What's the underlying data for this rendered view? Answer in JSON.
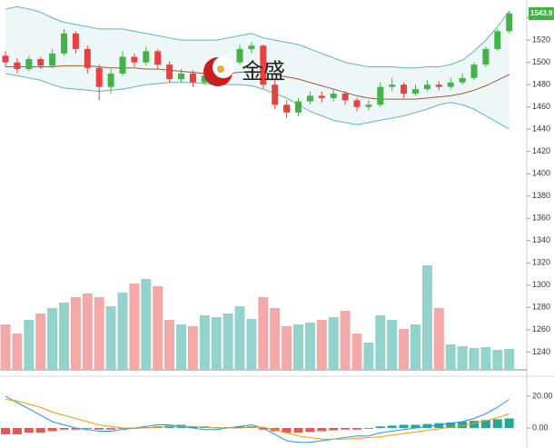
{
  "watermark": "金盛",
  "chart_data": [
    {
      "type": "candlestick",
      "ohlc": [
        [
          1506,
          1510,
          1496,
          1500
        ],
        [
          1500,
          1504,
          1490,
          1494
        ],
        [
          1494,
          1506,
          1492,
          1503
        ],
        [
          1503,
          1505,
          1494,
          1497
        ],
        [
          1497,
          1512,
          1495,
          1508
        ],
        [
          1508,
          1530,
          1506,
          1526
        ],
        [
          1526,
          1528,
          1508,
          1512
        ],
        [
          1512,
          1515,
          1490,
          1495
        ],
        [
          1495,
          1498,
          1466,
          1478
        ],
        [
          1478,
          1494,
          1472,
          1490
        ],
        [
          1490,
          1510,
          1488,
          1505
        ],
        [
          1505,
          1508,
          1496,
          1500
        ],
        [
          1500,
          1514,
          1497,
          1510
        ],
        [
          1510,
          1512,
          1494,
          1498
        ],
        [
          1498,
          1501,
          1482,
          1485
        ],
        [
          1485,
          1494,
          1482,
          1490
        ],
        [
          1490,
          1493,
          1478,
          1482
        ],
        [
          1482,
          1492,
          1480,
          1488
        ],
        [
          1488,
          1497,
          1485,
          1494
        ],
        [
          1494,
          1503,
          1490,
          1500
        ],
        [
          1500,
          1516,
          1498,
          1512
        ],
        [
          1512,
          1518,
          1508,
          1515
        ],
        [
          1515,
          1516,
          1476,
          1480
        ],
        [
          1480,
          1484,
          1458,
          1462
        ],
        [
          1462,
          1466,
          1450,
          1455
        ],
        [
          1455,
          1468,
          1452,
          1465
        ],
        [
          1465,
          1474,
          1462,
          1470
        ],
        [
          1470,
          1474,
          1464,
          1468
        ],
        [
          1468,
          1476,
          1465,
          1472
        ],
        [
          1472,
          1474,
          1462,
          1466
        ],
        [
          1466,
          1468,
          1456,
          1460
        ],
        [
          1460,
          1466,
          1457,
          1462
        ],
        [
          1462,
          1482,
          1460,
          1478
        ],
        [
          1478,
          1486,
          1474,
          1480
        ],
        [
          1480,
          1482,
          1468,
          1472
        ],
        [
          1472,
          1480,
          1470,
          1476
        ],
        [
          1476,
          1484,
          1474,
          1480
        ],
        [
          1480,
          1483,
          1475,
          1478
        ],
        [
          1478,
          1486,
          1476,
          1482
        ],
        [
          1482,
          1490,
          1480,
          1486
        ],
        [
          1486,
          1500,
          1484,
          1498
        ],
        [
          1498,
          1514,
          1496,
          1512
        ],
        [
          1512,
          1530,
          1510,
          1528
        ],
        [
          1528,
          1546,
          1526,
          1543.9
        ]
      ],
      "bands": {
        "upper": [
          1548,
          1550,
          1548,
          1545,
          1540,
          1536,
          1534,
          1532,
          1530,
          1530,
          1530,
          1528,
          1526,
          1524,
          1522,
          1520,
          1520,
          1520,
          1520,
          1522,
          1524,
          1526,
          1522,
          1520,
          1518,
          1516,
          1512,
          1508,
          1504,
          1500,
          1498,
          1496,
          1496,
          1496,
          1495,
          1495,
          1496,
          1496,
          1498,
          1502,
          1510,
          1520,
          1532,
          1546
        ],
        "middle": [
          1496,
          1496,
          1496,
          1496,
          1496,
          1497,
          1497,
          1497,
          1496,
          1495,
          1495,
          1495,
          1494,
          1494,
          1493,
          1492,
          1491,
          1490,
          1490,
          1490,
          1491,
          1492,
          1491,
          1489,
          1487,
          1485,
          1482,
          1479,
          1476,
          1473,
          1470,
          1468,
          1467,
          1467,
          1467,
          1467,
          1468,
          1469,
          1470,
          1472,
          1475,
          1479,
          1484,
          1489
        ],
        "lower": [
          1490,
          1488,
          1486,
          1484,
          1480,
          1477,
          1476,
          1475,
          1474,
          1475,
          1476,
          1478,
          1480,
          1481,
          1482,
          1482,
          1482,
          1481,
          1480,
          1480,
          1480,
          1479,
          1476,
          1472,
          1468,
          1462,
          1456,
          1452,
          1448,
          1446,
          1444,
          1446,
          1448,
          1450,
          1452,
          1455,
          1458,
          1462,
          1464,
          1462,
          1458,
          1452,
          1446,
          1440
        ]
      },
      "volume": [
        50,
        40,
        55,
        62,
        68,
        74,
        80,
        84,
        80,
        70,
        85,
        95,
        100,
        92,
        55,
        50,
        48,
        60,
        58,
        62,
        70,
        56,
        80,
        68,
        48,
        50,
        52,
        55,
        58,
        65,
        40,
        30,
        60,
        55,
        45,
        50,
        115,
        68,
        28,
        26,
        24,
        25,
        22,
        23
      ],
      "ylim": [
        1224,
        1556
      ],
      "yticks": [
        1240,
        1260,
        1280,
        1300,
        1320,
        1340,
        1360,
        1380,
        1400,
        1420,
        1440,
        1460,
        1480,
        1500,
        1520,
        1540
      ],
      "up_color": "#43b347",
      "down_color": "#e8423f",
      "band_color": "#63b1c2",
      "middle_color": "#9c5a3c",
      "band_fill": "#eef7f7",
      "volume_up_color": "#94d3cb",
      "volume_down_color": "#f3a9a7"
    },
    {
      "type": "macd",
      "histogram": [
        -4,
        -4,
        -3,
        -3,
        -2,
        -1,
        -1,
        -0.5,
        -1,
        -1,
        -0.5,
        -0.5,
        0.5,
        1,
        1.5,
        2,
        1,
        1,
        0.5,
        0.5,
        1,
        1,
        -1,
        -2,
        -3,
        -3,
        -2.5,
        -2,
        -1.5,
        -1,
        -1,
        -0.5,
        1,
        1.5,
        2,
        2,
        2.5,
        3,
        3.5,
        4,
        4.5,
        5,
        5.5,
        6
      ],
      "series": [
        {
          "color": "#2196f3",
          "values": [
            20,
            16,
            12,
            8,
            4,
            2,
            0,
            -1,
            -2,
            -2,
            -1,
            0,
            1,
            2,
            2,
            1,
            0,
            -1,
            -1,
            0,
            1,
            2,
            0,
            -4,
            -8,
            -9,
            -9,
            -8,
            -7,
            -6,
            -5,
            -5,
            -3,
            -2,
            -1,
            0,
            1,
            2,
            3,
            4,
            6,
            9,
            13,
            18
          ]
        },
        {
          "color": "#ff9800",
          "values": [
            18,
            17,
            15,
            13,
            10,
            8,
            6,
            4,
            2,
            1,
            0,
            0,
            0,
            0.5,
            1,
            1,
            1,
            0.5,
            0,
            0,
            0,
            0.5,
            0.5,
            -1,
            -3,
            -5,
            -6,
            -7,
            -7,
            -7,
            -6.5,
            -6,
            -5.5,
            -4.5,
            -3.5,
            -2.5,
            -1.5,
            -0.5,
            0.5,
            1.5,
            3,
            4.5,
            6.5,
            9
          ]
        }
      ],
      "ylim": [
        -12.6,
        30.3
      ],
      "yticks": [
        {
          "value": 20,
          "label": "20.00"
        },
        {
          "value": 0,
          "label": "0.00"
        }
      ],
      "up_color": "#26a69a",
      "down_color": "#ef5350"
    }
  ]
}
